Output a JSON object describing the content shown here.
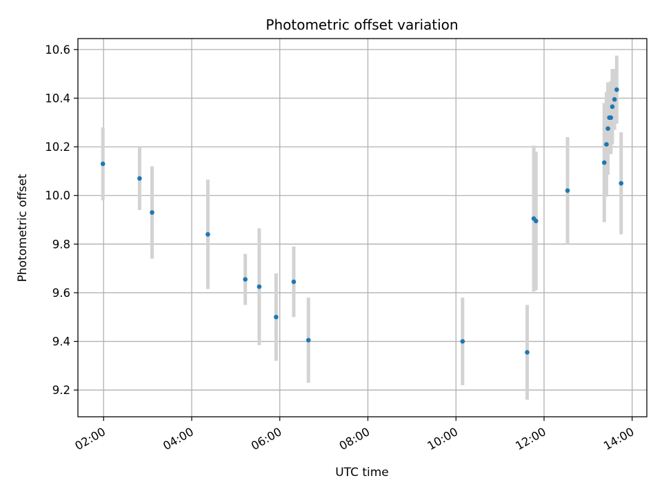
{
  "chart_data": {
    "type": "scatter",
    "title": "Photometric offset variation",
    "xlabel": "UTC time",
    "ylabel": "Photometric offset",
    "x_axis_type": "time",
    "xlim": [
      "01:25",
      "14:20"
    ],
    "ylim": [
      9.09,
      10.645
    ],
    "x_ticks": [
      "02:00",
      "04:00",
      "06:00",
      "08:00",
      "10:00",
      "12:00",
      "14:00"
    ],
    "y_ticks": [
      "9.2",
      "9.4",
      "9.6",
      "9.8",
      "10.0",
      "10.2",
      "10.4",
      "10.6"
    ],
    "grid": true,
    "legend": "none",
    "colors": {
      "point": "#1f77b4",
      "errorbar": "#d3d3d3",
      "grid": "#b0b0b0"
    },
    "series": [
      {
        "points": [
          {
            "x": "01:59",
            "y": 10.13,
            "yerr": 0.15
          },
          {
            "x": "02:49",
            "y": 10.07,
            "yerr": 0.13
          },
          {
            "x": "03:06",
            "y": 9.93,
            "yerr": 0.19
          },
          {
            "x": "04:22",
            "y": 9.84,
            "yerr": 0.225
          },
          {
            "x": "05:13",
            "y": 9.655,
            "yerr": 0.105
          },
          {
            "x": "05:32",
            "y": 9.625,
            "yerr": 0.24
          },
          {
            "x": "05:55",
            "y": 9.5,
            "yerr": 0.18
          },
          {
            "x": "06:19",
            "y": 9.645,
            "yerr": 0.145
          },
          {
            "x": "06:39",
            "y": 9.405,
            "yerr": 0.175
          },
          {
            "x": "10:09",
            "y": 9.4,
            "yerr": 0.18
          },
          {
            "x": "11:37",
            "y": 9.355,
            "yerr": 0.195
          },
          {
            "x": "11:46",
            "y": 9.905,
            "yerr": 0.3
          },
          {
            "x": "11:49",
            "y": 9.895,
            "yerr": 0.285
          },
          {
            "x": "12:32",
            "y": 10.02,
            "yerr": 0.22
          },
          {
            "x": "13:22",
            "y": 10.135,
            "yerr": 0.245
          },
          {
            "x": "13:25",
            "y": 10.21,
            "yerr": 0.215
          },
          {
            "x": "13:27",
            "y": 10.275,
            "yerr": 0.19
          },
          {
            "x": "13:29",
            "y": 10.32,
            "yerr": 0.145
          },
          {
            "x": "13:31",
            "y": 10.32,
            "yerr": 0.15
          },
          {
            "x": "13:33",
            "y": 10.365,
            "yerr": 0.155
          },
          {
            "x": "13:36",
            "y": 10.395,
            "yerr": 0.125
          },
          {
            "x": "13:39",
            "y": 10.435,
            "yerr": 0.14
          },
          {
            "x": "13:45",
            "y": 10.05,
            "yerr": 0.21
          }
        ]
      }
    ]
  }
}
